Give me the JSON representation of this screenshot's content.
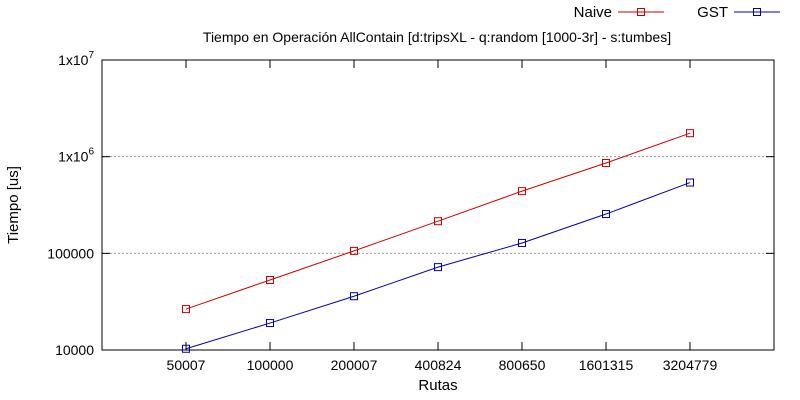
{
  "chart_data": {
    "type": "line",
    "title": "Tiempo en Operación AllContain [d:tripsXL - q:random [1000-3r] - s:tumbes]",
    "xlabel": "Rutas",
    "ylabel": "Tiempo [us]",
    "categories": [
      "50007",
      "100000",
      "200007",
      "400824",
      "800650",
      "1601315",
      "3204779"
    ],
    "y_scale": "log",
    "ylim": [
      10000,
      10000000
    ],
    "y_ticks": [
      {
        "value": 10000,
        "base": "10000",
        "exp": ""
      },
      {
        "value": 100000,
        "base": "100000",
        "exp": ""
      },
      {
        "value": 1000000,
        "base": "1x10",
        "exp": "6"
      },
      {
        "value": 10000000,
        "base": "1x10",
        "exp": "7"
      }
    ],
    "grid": "horizontal dotted",
    "legend_position": "top-right",
    "series": [
      {
        "name": "Naive",
        "color": "#cc0000",
        "marker": "open-square",
        "values": [
          26500,
          53000,
          106000,
          215000,
          440000,
          860000,
          1750000
        ]
      },
      {
        "name": "GST",
        "color": "#0000aa",
        "marker": "open-square",
        "values": [
          10300,
          19000,
          36000,
          72000,
          128000,
          255000,
          540000
        ]
      }
    ]
  }
}
